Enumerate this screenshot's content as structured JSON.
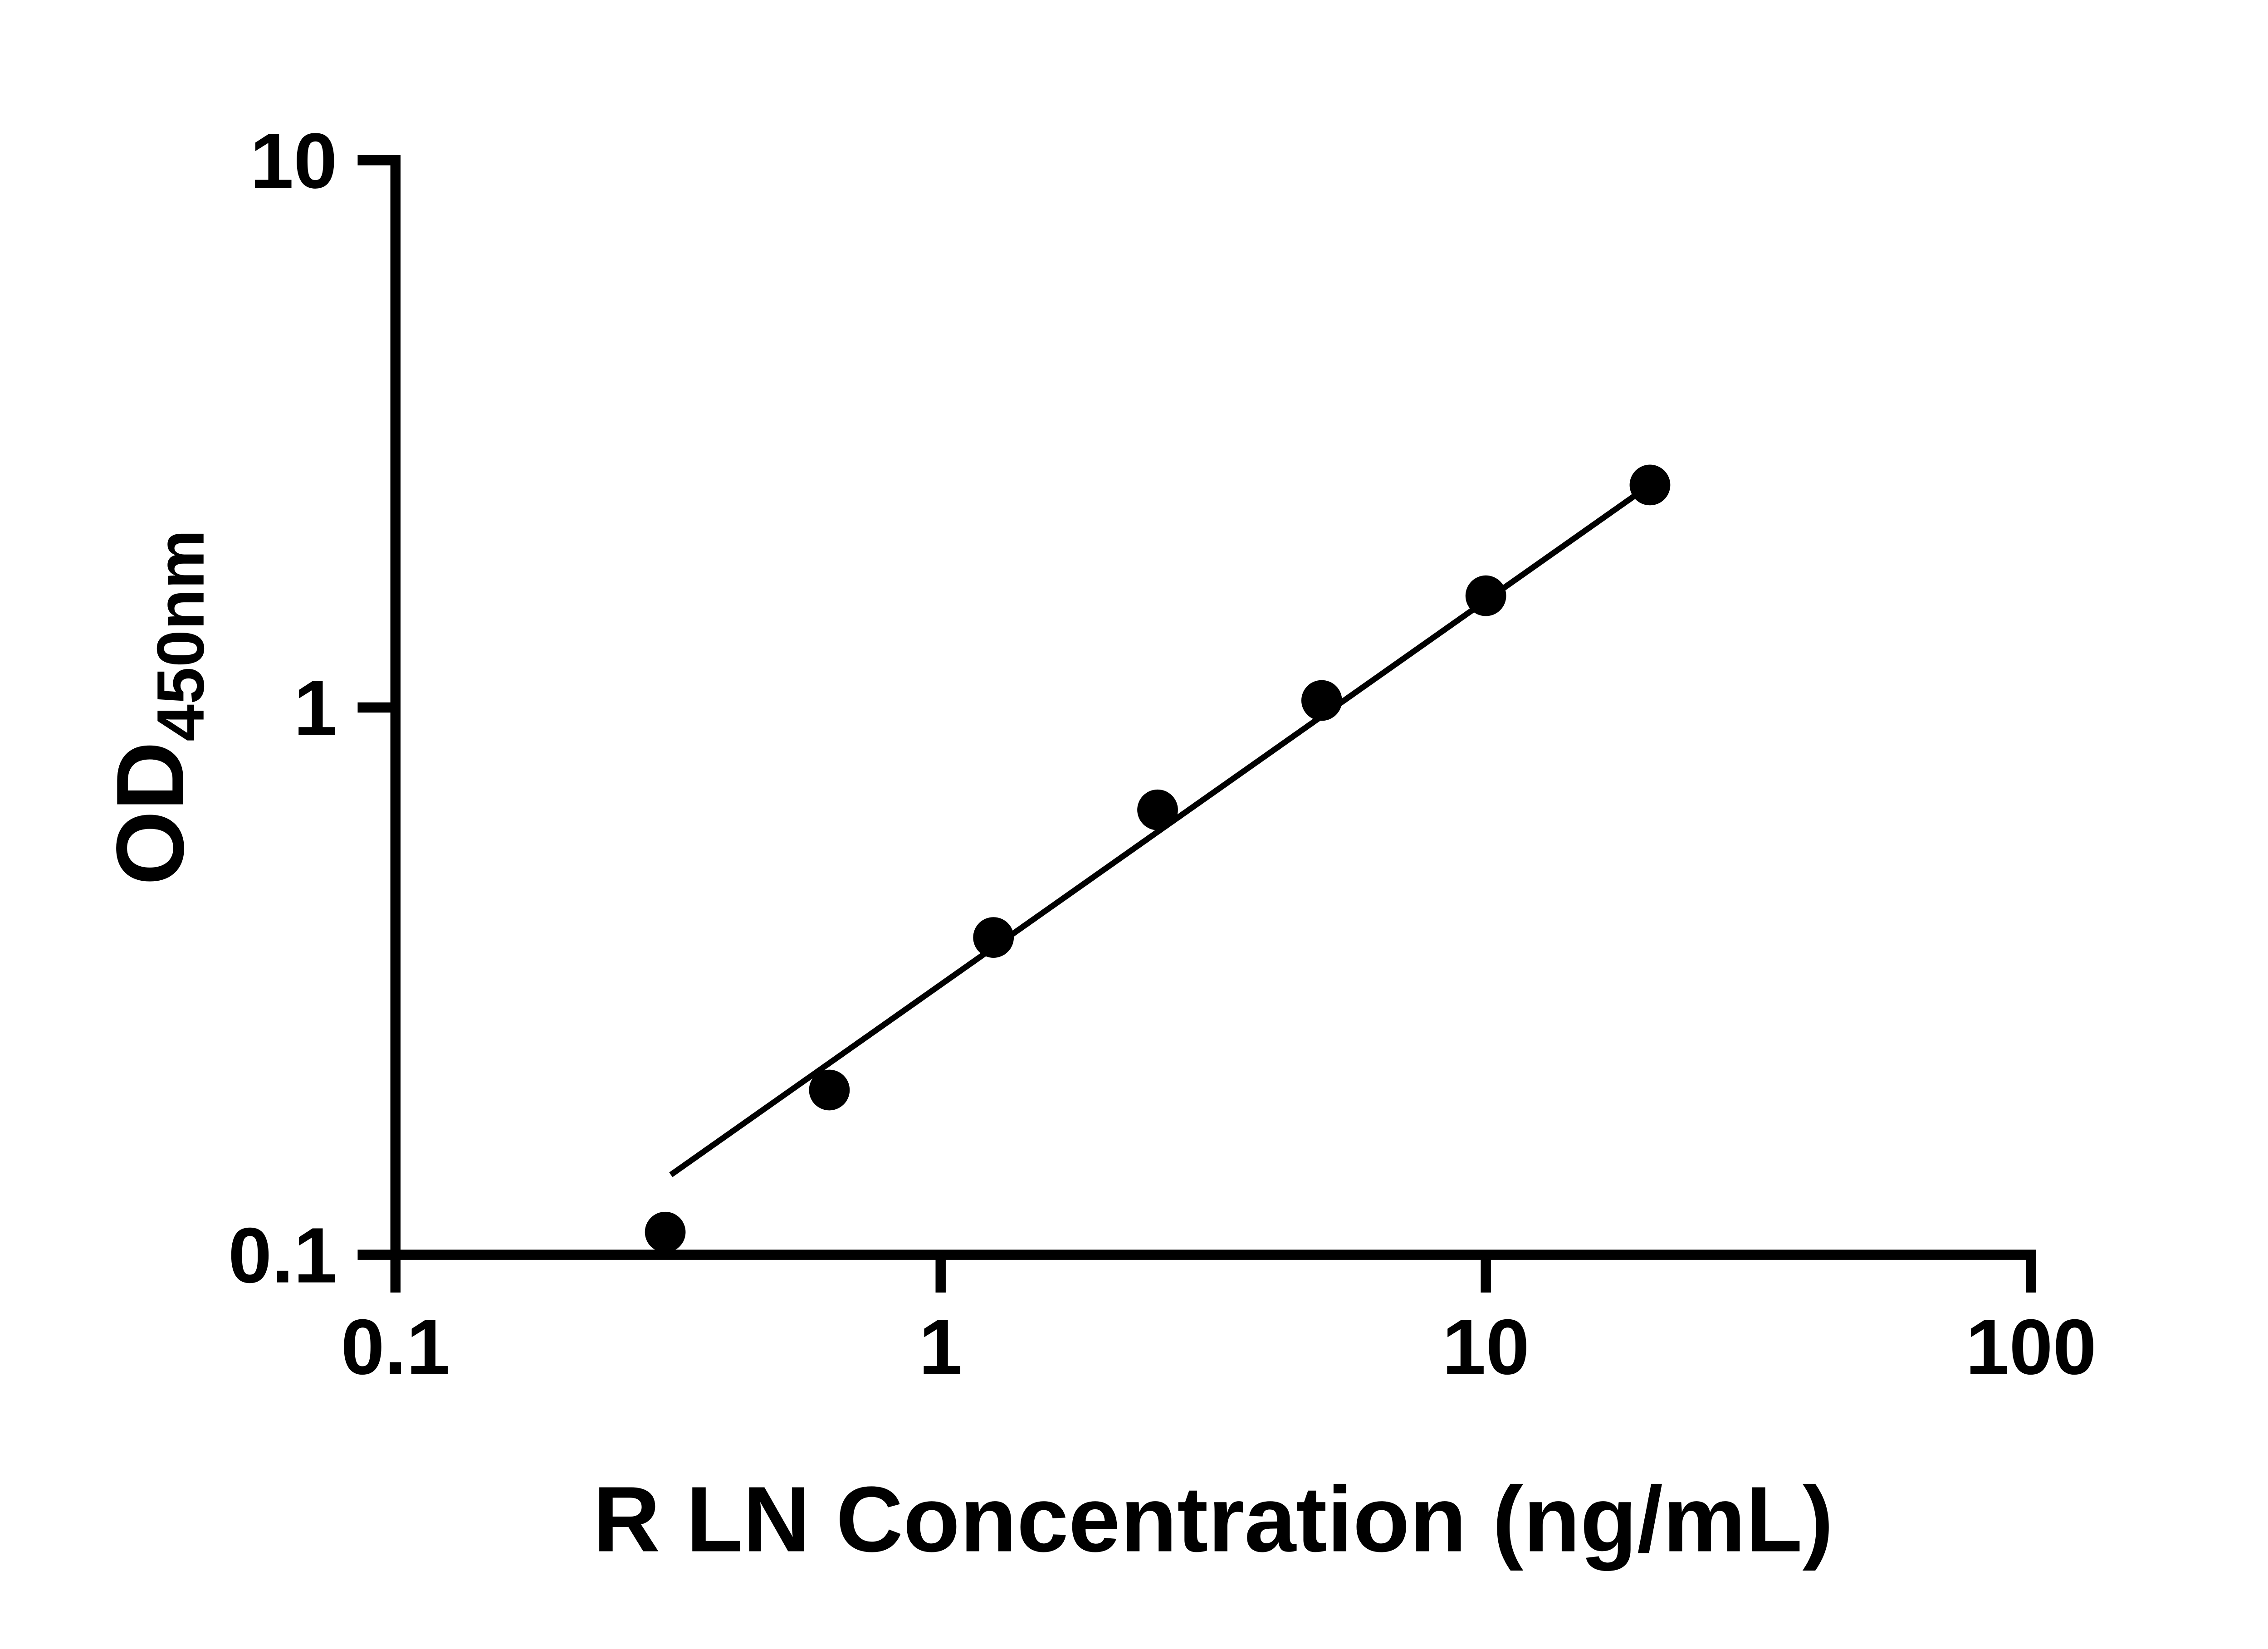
{
  "chart": {
    "ylabel_main": "OD",
    "ylabel_sub": "450nm",
    "background_color": "#ffffff",
    "axis_color": "#000000"
  },
  "chart_data": {
    "type": "scatter",
    "title": "",
    "xlabel": "R LN Concentration (ng/mL)",
    "ylabel": "OD450nm",
    "xscale": "log",
    "yscale": "log",
    "xlim": [
      0.1,
      100
    ],
    "ylim": [
      0.1,
      10
    ],
    "grid": false,
    "legend": false,
    "x": [
      0.3125,
      0.625,
      1.25,
      2.5,
      5,
      10,
      20
    ],
    "y": [
      0.11,
      0.2,
      0.38,
      0.65,
      1.03,
      1.6,
      2.55
    ],
    "x_ticks": [
      0.1,
      1,
      10,
      100
    ],
    "x_tick_labels": [
      "0.1",
      "1",
      "10",
      "100"
    ],
    "y_ticks": [
      0.1,
      1,
      10
    ],
    "y_tick_labels": [
      "0.1",
      "1",
      "10"
    ],
    "marker_color": "#000000",
    "line_color": "#000000",
    "marker_radius": 14,
    "trend_line": {
      "x1": 0.32,
      "y1": 0.14,
      "x2": 20,
      "y2": 2.55
    }
  }
}
